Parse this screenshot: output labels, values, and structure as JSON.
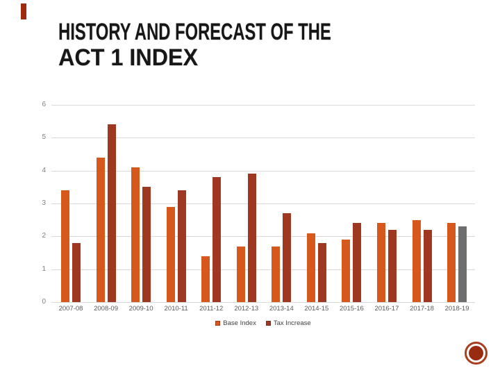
{
  "slide": {
    "title_line1": "HISTORY AND FORECAST OF THE",
    "title_line2": "ACT 1 INDEX",
    "accent_color": "#9E2B10",
    "stamp": {
      "ring_color": "#A8401F",
      "fill_color": "#992C10"
    }
  },
  "chart_data": {
    "type": "bar",
    "title": "HISTORY AND FORECAST OF THE ACT 1 INDEX",
    "categories": [
      "2007-08",
      "2008-09",
      "2009-10",
      "2010-11",
      "2011-12",
      "2012-13",
      "2013-14",
      "2014-15",
      "2015-16",
      "2016-17",
      "2017-18",
      "2018-19"
    ],
    "series": [
      {
        "name": "Base Index",
        "color": "#D6581C",
        "values": [
          3.4,
          4.4,
          4.1,
          2.9,
          1.4,
          1.7,
          1.7,
          2.1,
          1.9,
          2.4,
          2.5,
          2.4
        ]
      },
      {
        "name": "Tax Increase",
        "color": "#9E3820",
        "values": [
          1.8,
          5.4,
          3.5,
          3.4,
          3.8,
          3.9,
          2.7,
          1.8,
          2.4,
          2.2,
          2.2,
          2.3
        ],
        "point_colors": {
          "2018-19": "#6E6E6E"
        }
      }
    ],
    "xlabel": "",
    "ylabel": "",
    "ylim": [
      0,
      6
    ],
    "yticks": [
      0,
      1,
      2,
      3,
      4,
      5,
      6
    ],
    "grid": true,
    "legend_position": "bottom",
    "axis_label_color": "#7F7F7F",
    "gridline_color": "#D9D9D9"
  }
}
